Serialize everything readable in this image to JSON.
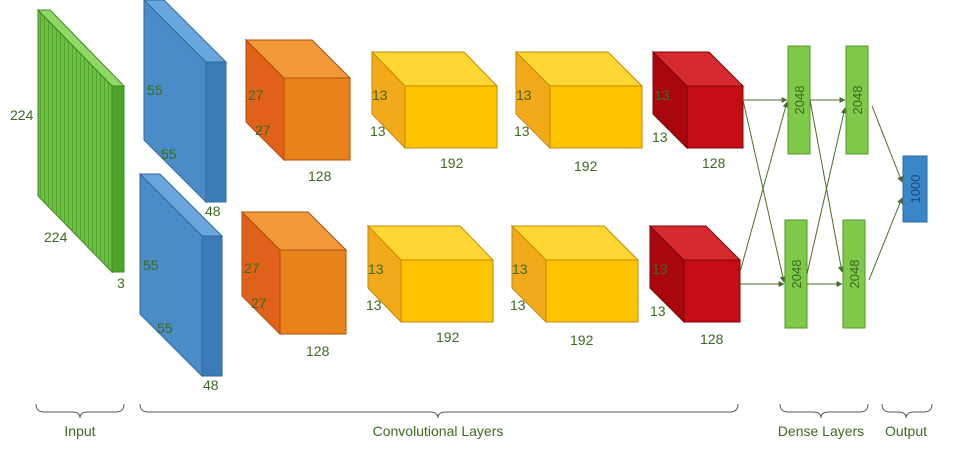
{
  "colors": {
    "input": "#6cbf3e",
    "conv1": "#4a8cc8",
    "conv2": "#e8821a",
    "conv3": "#f7c200",
    "conv5": "#c40c12",
    "dense": "#7ec94a",
    "output": "#3a86c6",
    "label": "#3d6b1e"
  },
  "input": {
    "height": "224",
    "width": "224",
    "depth": "3"
  },
  "conv1": {
    "top": {
      "h": "55",
      "w": "55",
      "d": "48"
    },
    "bottom": {
      "h": "55",
      "w": "55",
      "d": "48"
    }
  },
  "conv2": {
    "top": {
      "h": "27",
      "w": "27",
      "d": "128"
    },
    "bottom": {
      "h": "27",
      "w": "27",
      "d": "128"
    }
  },
  "conv3": {
    "top": {
      "h": "13",
      "w": "13",
      "d": "192"
    },
    "bottom": {
      "h": "13",
      "w": "13",
      "d": "192"
    }
  },
  "conv4": {
    "top": {
      "h": "13",
      "w": "13",
      "d": "192"
    },
    "bottom": {
      "h": "13",
      "w": "13",
      "d": "192"
    }
  },
  "conv5": {
    "top": {
      "h": "13",
      "w": "13",
      "d": "128"
    },
    "bottom": {
      "h": "13",
      "w": "13",
      "d": "128"
    }
  },
  "dense1": {
    "top": "2048",
    "bottom": "2048"
  },
  "dense2": {
    "top": "2048",
    "bottom": "2048"
  },
  "output": {
    "units": "1000"
  },
  "groups": {
    "input": "Input",
    "conv": "Convolutional Layers",
    "dense": "Dense Layers",
    "output": "Output"
  }
}
